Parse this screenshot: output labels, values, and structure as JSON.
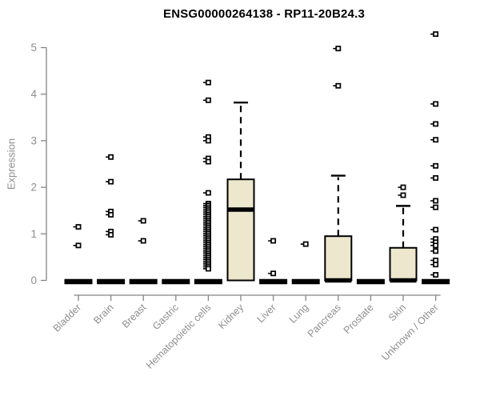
{
  "page": {
    "background": "#ffffff"
  },
  "chart_data": {
    "type": "boxplot",
    "title": "ENSG00000264138 - RP11-20B24.3",
    "ylabel": "Expression",
    "xlabel": "",
    "ylim": [
      0,
      5.3
    ],
    "yticks": [
      0,
      1,
      2,
      3,
      4,
      5
    ],
    "grid": false,
    "legend": false,
    "colors": {
      "box_fill": "#ece7cd",
      "box_stroke": "#000000",
      "median": "#000000",
      "outlier": "#000000",
      "axis": "#848484",
      "tick_labels": "#8e8e8e",
      "title": "#000000"
    },
    "categories": [
      "Bladder",
      "Brain",
      "Breast",
      "Gastric",
      "Hematopoietic cells",
      "Kidney",
      "Liver",
      "Lung",
      "Pancreas",
      "Prostate",
      "Skin",
      "Unknown / Other"
    ],
    "series": [
      {
        "category": "Bladder",
        "q1": 0,
        "median": 0,
        "q3": 0,
        "whisker_low": 0,
        "whisker_high": 0,
        "outliers": [
          1.15,
          0.75
        ]
      },
      {
        "category": "Brain",
        "q1": 0,
        "median": 0,
        "q3": 0,
        "whisker_low": 0,
        "whisker_high": 0,
        "outliers": [
          2.65,
          2.12,
          1.48,
          1.41,
          1.05,
          0.98
        ]
      },
      {
        "category": "Breast",
        "q1": 0,
        "median": 0,
        "q3": 0,
        "whisker_low": 0,
        "whisker_high": 0,
        "outliers": [
          1.28,
          0.85
        ]
      },
      {
        "category": "Gastric",
        "q1": 0,
        "median": 0,
        "q3": 0,
        "whisker_low": 0,
        "whisker_high": 0,
        "outliers": []
      },
      {
        "category": "Hematopoietic cells",
        "q1": 0,
        "median": 0,
        "q3": 0,
        "whisker_low": 0,
        "whisker_high": 0,
        "outliers": [
          4.25,
          3.87,
          3.08,
          3.0,
          2.62,
          2.55,
          1.88,
          1.65,
          1.61,
          1.57,
          1.53,
          1.49,
          1.45,
          1.41,
          1.37,
          1.33,
          1.29,
          1.25,
          1.21,
          1.17,
          1.13,
          1.09,
          1.05,
          1.01,
          0.97,
          0.93,
          0.89,
          0.85,
          0.81,
          0.77,
          0.73,
          0.69,
          0.65,
          0.61,
          0.57,
          0.53,
          0.49,
          0.45,
          0.41,
          0.37,
          0.33,
          0.29,
          0.25
        ]
      },
      {
        "category": "Kidney",
        "q1": 0,
        "median": 1.52,
        "q3": 2.17,
        "whisker_low": 0,
        "whisker_high": 3.82,
        "outliers": []
      },
      {
        "category": "Liver",
        "q1": 0,
        "median": 0,
        "q3": 0,
        "whisker_low": 0,
        "whisker_high": 0,
        "outliers": [
          0.85,
          0.15
        ]
      },
      {
        "category": "Lung",
        "q1": 0,
        "median": 0,
        "q3": 0,
        "whisker_low": 0,
        "whisker_high": 0,
        "outliers": [
          0.78
        ]
      },
      {
        "category": "Pancreas",
        "q1": 0,
        "median": 0,
        "q3": 0.95,
        "whisker_low": 0,
        "whisker_high": 2.25,
        "outliers": [
          4.98,
          4.18
        ]
      },
      {
        "category": "Prostate",
        "q1": 0,
        "median": 0,
        "q3": 0,
        "whisker_low": 0,
        "whisker_high": 0,
        "outliers": []
      },
      {
        "category": "Skin",
        "q1": 0,
        "median": 0,
        "q3": 0.7,
        "whisker_low": 0,
        "whisker_high": 1.6,
        "outliers": [
          2.0,
          1.83
        ]
      },
      {
        "category": "Unknown / Other",
        "q1": 0,
        "median": 0,
        "q3": 0,
        "whisker_low": 0,
        "whisker_high": 0,
        "outliers": [
          5.29,
          3.79,
          3.36,
          3.02,
          2.46,
          2.2,
          1.71,
          1.57,
          1.09,
          0.89,
          0.82,
          0.75,
          0.63,
          0.43,
          0.34,
          0.12
        ]
      }
    ]
  }
}
